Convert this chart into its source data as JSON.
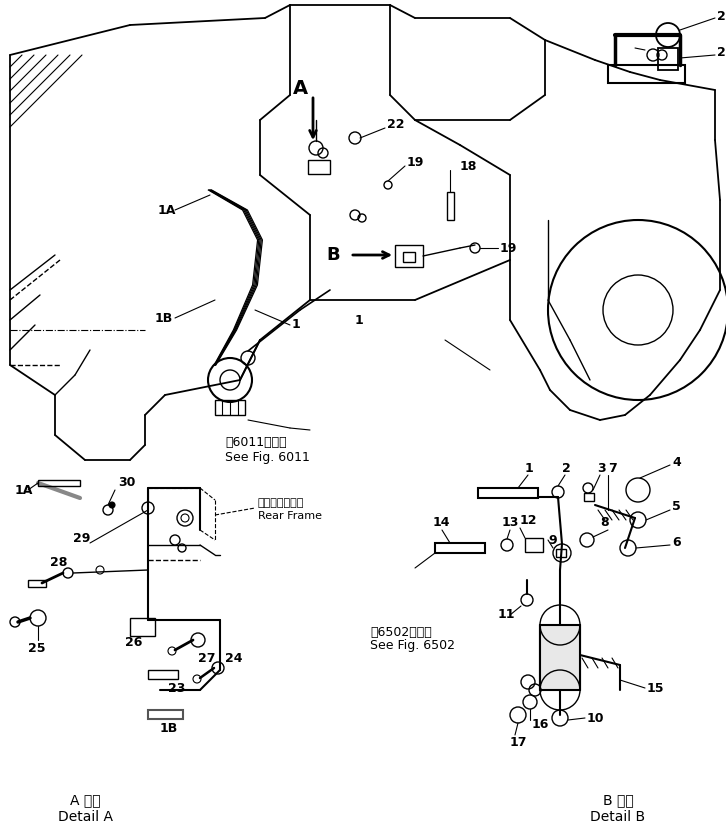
{
  "bg_color": "#ffffff",
  "line_color": "#000000",
  "figsize": [
    7.26,
    8.32
  ],
  "dpi": 100,
  "fig6011_text": [
    "第6011図参照",
    "See Fig. 6011"
  ],
  "fig6502_text": [
    "第6502図参照",
    "See Fig. 6502"
  ],
  "detail_a_text": [
    "A 詳細",
    "Detail A"
  ],
  "detail_b_text": [
    "B 詳細",
    "Detail B"
  ],
  "rear_frame_text": [
    "リャーフレーム",
    "Rear Frame"
  ]
}
